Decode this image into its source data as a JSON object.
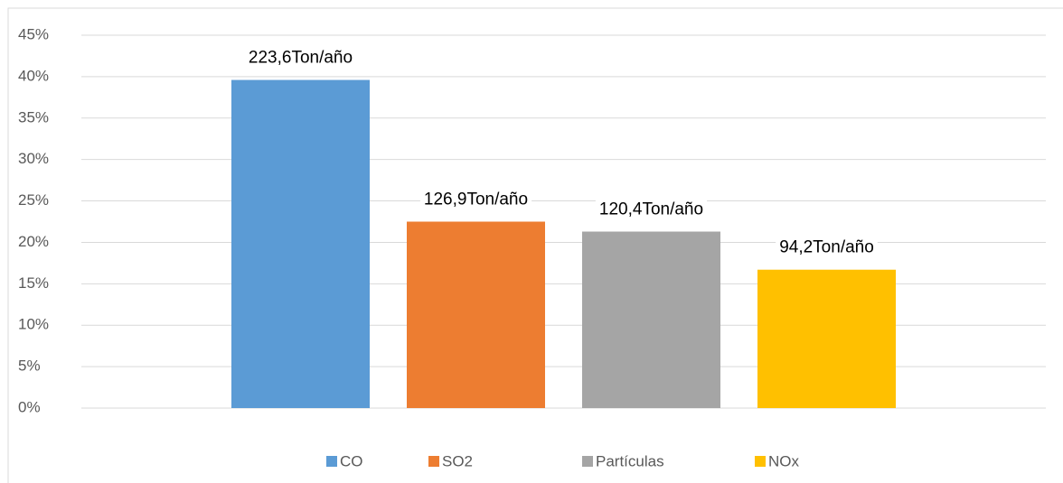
{
  "chart_data": {
    "type": "bar",
    "series": [
      {
        "name": "CO",
        "color": "#5b9bd5",
        "values": [
          39.6
        ],
        "data_label": "223,6Ton/año"
      },
      {
        "name": "SO2",
        "color": "#ed7d31",
        "values": [
          22.5
        ],
        "data_label": "126,9Ton/año"
      },
      {
        "name": "Partículas",
        "color": "#a5a5a5",
        "values": [
          21.3
        ],
        "data_label": "120,4Ton/año"
      },
      {
        "name": "NOx",
        "color": "#ffc000",
        "values": [
          16.7
        ],
        "data_label": "94,2Ton/año"
      }
    ],
    "ylim": [
      0,
      45
    ],
    "yticks": [
      {
        "value": 0,
        "label": "0%"
      },
      {
        "value": 5,
        "label": "5%"
      },
      {
        "value": 10,
        "label": "10%"
      },
      {
        "value": 15,
        "label": "15%"
      },
      {
        "value": 20,
        "label": "20%"
      },
      {
        "value": 25,
        "label": "25%"
      },
      {
        "value": 30,
        "label": "30%"
      },
      {
        "value": 35,
        "label": "35%"
      },
      {
        "value": 40,
        "label": "40%"
      },
      {
        "value": 45,
        "label": "45%"
      }
    ],
    "grid": true,
    "legend": "bottom"
  }
}
